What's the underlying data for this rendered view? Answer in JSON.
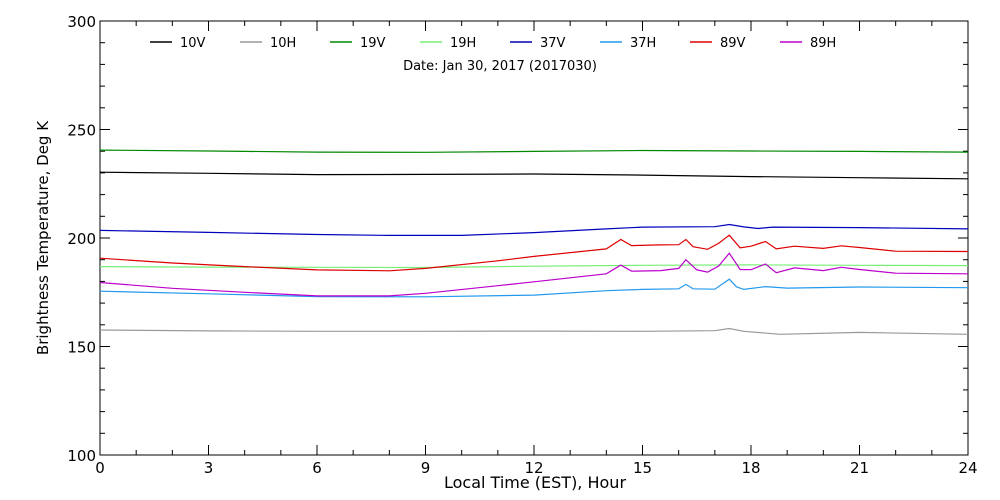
{
  "chart_data": {
    "type": "line",
    "title": "Date: Jan 30, 2017 (2017030)",
    "xlabel": "Local Time (EST), Hour",
    "ylabel": "Brightness Temperature, Deg K",
    "xlim": [
      0,
      24
    ],
    "ylim": [
      100,
      300
    ],
    "xticks": [
      0,
      3,
      6,
      9,
      12,
      15,
      18,
      21,
      24
    ],
    "yticks": [
      100,
      150,
      200,
      250,
      300
    ],
    "grid": false,
    "legend_position": "top",
    "series": [
      {
        "name": "10V",
        "color": "#000000",
        "points": [
          [
            0,
            230.3
          ],
          [
            3,
            229.8
          ],
          [
            6,
            229.2
          ],
          [
            9,
            229.3
          ],
          [
            12,
            229.5
          ],
          [
            15,
            229.0
          ],
          [
            18,
            228.3
          ],
          [
            21,
            227.8
          ],
          [
            24,
            227.3
          ]
        ]
      },
      {
        "name": "10H",
        "color": "#999999",
        "points": [
          [
            0,
            157.6
          ],
          [
            3,
            157.2
          ],
          [
            6,
            157.0
          ],
          [
            9,
            157.0
          ],
          [
            12,
            157.1
          ],
          [
            15,
            157.0
          ],
          [
            17,
            157.3
          ],
          [
            17.4,
            158.3
          ],
          [
            17.8,
            157.0
          ],
          [
            18.8,
            155.6
          ],
          [
            21,
            156.5
          ],
          [
            24,
            155.6
          ]
        ]
      },
      {
        "name": "19V",
        "color": "#008800",
        "points": [
          [
            0,
            240.5
          ],
          [
            3,
            240.1
          ],
          [
            6,
            239.6
          ],
          [
            9,
            239.5
          ],
          [
            12,
            239.9
          ],
          [
            15,
            240.3
          ],
          [
            18,
            240.1
          ],
          [
            21,
            239.9
          ],
          [
            24,
            239.6
          ]
        ]
      },
      {
        "name": "19H",
        "color": "#77ee77",
        "points": [
          [
            0,
            186.8
          ],
          [
            3,
            186.6
          ],
          [
            6,
            186.5
          ],
          [
            9,
            186.4
          ],
          [
            12,
            187.0
          ],
          [
            15,
            187.4
          ],
          [
            18,
            187.6
          ],
          [
            21,
            187.4
          ],
          [
            24,
            187.3
          ]
        ]
      },
      {
        "name": "37V",
        "color": "#0000bb",
        "points": [
          [
            0,
            203.5
          ],
          [
            3,
            202.6
          ],
          [
            6,
            201.6
          ],
          [
            8,
            201.2
          ],
          [
            10,
            201.2
          ],
          [
            12,
            202.5
          ],
          [
            14,
            204.2
          ],
          [
            15,
            205.0
          ],
          [
            17,
            205.2
          ],
          [
            17.4,
            206.2
          ],
          [
            17.8,
            205.1
          ],
          [
            18.2,
            204.4
          ],
          [
            18.6,
            205.0
          ],
          [
            21,
            204.8
          ],
          [
            24,
            204.2
          ]
        ]
      },
      {
        "name": "37H",
        "color": "#2299ee",
        "points": [
          [
            0,
            175.5
          ],
          [
            3,
            174.3
          ],
          [
            6,
            173.0
          ],
          [
            9,
            172.9
          ],
          [
            12,
            173.7
          ],
          [
            14,
            175.7
          ],
          [
            15,
            176.3
          ],
          [
            16,
            176.6
          ],
          [
            16.2,
            178.6
          ],
          [
            16.4,
            176.6
          ],
          [
            17,
            176.4
          ],
          [
            17.4,
            181.0
          ],
          [
            17.6,
            177.5
          ],
          [
            17.8,
            176.3
          ],
          [
            18.4,
            177.6
          ],
          [
            19,
            176.9
          ],
          [
            21,
            177.4
          ],
          [
            24,
            177.1
          ]
        ]
      },
      {
        "name": "89V",
        "color": "#dd0000",
        "points": [
          [
            0,
            190.7
          ],
          [
            2,
            188.5
          ],
          [
            4,
            186.8
          ],
          [
            6,
            185.3
          ],
          [
            8,
            184.9
          ],
          [
            9,
            186.0
          ],
          [
            11,
            189.5
          ],
          [
            12,
            191.5
          ],
          [
            14,
            195.0
          ],
          [
            14.4,
            199.3
          ],
          [
            14.7,
            196.5
          ],
          [
            15.5,
            196.8
          ],
          [
            16,
            196.9
          ],
          [
            16.2,
            199.3
          ],
          [
            16.4,
            196.0
          ],
          [
            16.8,
            194.8
          ],
          [
            17.1,
            197.5
          ],
          [
            17.4,
            201.3
          ],
          [
            17.7,
            195.5
          ],
          [
            18,
            196.2
          ],
          [
            18.4,
            198.4
          ],
          [
            18.7,
            195.0
          ],
          [
            19.2,
            196.2
          ],
          [
            20,
            195.2
          ],
          [
            20.5,
            196.4
          ],
          [
            21,
            195.6
          ],
          [
            22,
            193.9
          ],
          [
            24,
            193.8
          ]
        ]
      },
      {
        "name": "89H",
        "color": "#bb00cc",
        "points": [
          [
            0,
            179.5
          ],
          [
            2,
            176.8
          ],
          [
            4,
            175.0
          ],
          [
            6,
            173.3
          ],
          [
            8,
            173.3
          ],
          [
            9,
            174.5
          ],
          [
            11,
            178.0
          ],
          [
            12,
            179.8
          ],
          [
            14,
            183.5
          ],
          [
            14.4,
            187.5
          ],
          [
            14.7,
            184.7
          ],
          [
            15.5,
            185.0
          ],
          [
            16,
            186.0
          ],
          [
            16.2,
            190.0
          ],
          [
            16.5,
            185.3
          ],
          [
            16.8,
            184.3
          ],
          [
            17.1,
            187.0
          ],
          [
            17.4,
            193.0
          ],
          [
            17.7,
            185.5
          ],
          [
            18,
            185.4
          ],
          [
            18.4,
            188.0
          ],
          [
            18.7,
            184.0
          ],
          [
            19.2,
            186.2
          ],
          [
            20,
            185.0
          ],
          [
            20.5,
            186.5
          ],
          [
            21,
            185.5
          ],
          [
            22,
            183.8
          ],
          [
            24,
            183.5
          ]
        ]
      }
    ]
  }
}
